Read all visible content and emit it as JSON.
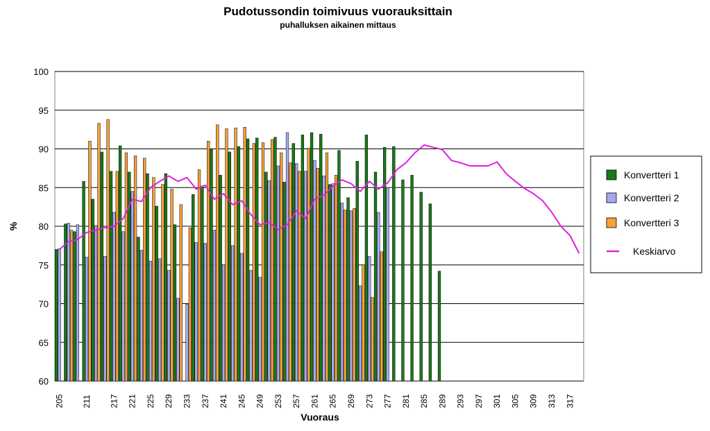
{
  "chart_data": {
    "type": "bar",
    "title": "Pudotussondin toimivuus vuorauksittain",
    "subtitle": "puhalluksen aikainen mittaus",
    "xlabel": "Vuoraus",
    "ylabel": "%",
    "ylim": [
      60,
      100
    ],
    "yticks": [
      60,
      65,
      70,
      75,
      80,
      85,
      90,
      95,
      100
    ],
    "grid": true,
    "legend_position": "right",
    "categories": [
      "205",
      "207",
      "209",
      "211",
      "213",
      "215",
      "217",
      "219",
      "221",
      "223",
      "225",
      "227",
      "229",
      "231",
      "233",
      "235",
      "237",
      "239",
      "241",
      "243",
      "245",
      "247",
      "249",
      "251",
      "253",
      "255",
      "257",
      "259",
      "261",
      "263",
      "265",
      "267",
      "269",
      "271",
      "273",
      "275",
      "277",
      "279",
      "281",
      "283",
      "285",
      "287",
      "289",
      "291",
      "293",
      "295",
      "297",
      "299",
      "301",
      "303",
      "305",
      "307",
      "309",
      "311",
      "313",
      "315",
      "317",
      "319"
    ],
    "xtick_labels": [
      "205",
      "211",
      "217",
      "221",
      "225",
      "229",
      "233",
      "237",
      "241",
      "245",
      "249",
      "253",
      "257",
      "261",
      "265",
      "269",
      "273",
      "277",
      "281",
      "285",
      "289",
      "293",
      "297",
      "301",
      "305",
      "309",
      "313",
      "317"
    ],
    "series": [
      {
        "name": "Konvertteri  1",
        "color": "#1a7a1a",
        "kind": "bar",
        "values": [
          77.0,
          80.3,
          79.3,
          85.8,
          83.5,
          89.6,
          87.1,
          90.4,
          87.0,
          78.6,
          86.8,
          82.6,
          86.8,
          80.2,
          null,
          84.1,
          85.2,
          90.0,
          86.6,
          89.6,
          90.3,
          91.3,
          91.4,
          87.0,
          91.5,
          85.7,
          90.7,
          91.8,
          92.1,
          91.9,
          85.4,
          89.8,
          83.7,
          88.4,
          91.8,
          87.0,
          90.2,
          90.3,
          86.0,
          86.6,
          84.4,
          82.9,
          74.2,
          null,
          null,
          null,
          null,
          null,
          null,
          null,
          null,
          null,
          null,
          null,
          null,
          null,
          null,
          null
        ]
      },
      {
        "name": "Konvertteri  2",
        "color": "#a8a8ee",
        "kind": "bar",
        "values": [
          77.1,
          80.4,
          80.2,
          76.0,
          80.1,
          76.1,
          81.8,
          79.3,
          84.5,
          76.9,
          75.5,
          75.8,
          74.3,
          70.7,
          69.9,
          77.9,
          77.8,
          79.5,
          75.0,
          77.5,
          76.5,
          74.3,
          73.4,
          85.9,
          87.8,
          92.1,
          88.1,
          87.1,
          88.5,
          86.5,
          85.5,
          83.0,
          82.0,
          72.3,
          76.1,
          81.8,
          85.0,
          null,
          null,
          null,
          null,
          null,
          null,
          null,
          null,
          null,
          null,
          null,
          null,
          null,
          null,
          null,
          null,
          null,
          null,
          null,
          null,
          null
        ]
      },
      {
        "name": "Konvertteri  3",
        "color": "#f5a03c",
        "kind": "bar",
        "values": [
          null,
          79.5,
          null,
          91.0,
          93.3,
          93.8,
          87.1,
          89.5,
          89.1,
          88.8,
          86.3,
          85.4,
          84.8,
          82.8,
          79.8,
          87.3,
          91.0,
          93.1,
          92.6,
          92.7,
          92.8,
          90.7,
          90.8,
          91.2,
          89.5,
          88.2,
          87.1,
          90.1,
          87.5,
          89.5,
          86.6,
          82.1,
          82.3,
          75.0,
          70.8,
          76.7,
          null,
          null,
          null,
          null,
          null,
          null,
          null,
          null,
          null,
          null,
          null,
          null,
          null,
          null,
          null,
          null,
          null,
          null,
          null,
          null,
          null,
          null
        ]
      },
      {
        "name": "Keskiarvo",
        "color": "#e020e0",
        "kind": "line",
        "values": [
          77.0,
          78.0,
          78.3,
          79.2,
          79.5,
          79.8,
          80.0,
          81.0,
          83.5,
          83.2,
          85.0,
          85.8,
          86.5,
          85.8,
          86.3,
          84.8,
          85.3,
          83.5,
          84.2,
          82.8,
          83.3,
          81.5,
          80.2,
          80.5,
          79.6,
          80.2,
          82.0,
          81.0,
          83.5,
          84.0,
          85.2,
          86.0,
          85.5,
          84.5,
          85.8,
          84.8,
          85.6,
          87.3,
          88.2,
          89.5,
          90.5,
          90.2,
          89.9,
          88.5,
          88.2,
          87.8,
          87.8,
          87.8,
          88.3,
          86.8,
          85.8,
          84.9,
          84.2,
          83.3,
          81.8,
          80.0,
          78.8,
          76.5
        ]
      }
    ]
  }
}
